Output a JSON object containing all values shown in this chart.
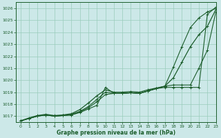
{
  "title": "Graphe pression niveau de la mer (hPa)",
  "bg_color": "#cce8e8",
  "grid_color": "#99ccbb",
  "line_color": "#1a5c2a",
  "xlim": [
    -0.5,
    23
  ],
  "ylim": [
    1016.5,
    1026.5
  ],
  "yticks": [
    1017,
    1018,
    1019,
    1020,
    1021,
    1022,
    1023,
    1024,
    1025,
    1026
  ],
  "xticks": [
    0,
    1,
    2,
    3,
    4,
    5,
    6,
    7,
    8,
    9,
    10,
    11,
    12,
    13,
    14,
    15,
    16,
    17,
    18,
    19,
    20,
    21,
    22,
    23
  ],
  "series": [
    [
      1016.6,
      1016.8,
      1017.0,
      1017.1,
      1017.0,
      1017.05,
      1017.1,
      1017.3,
      1017.6,
      1017.9,
      1019.4,
      1018.9,
      1018.9,
      1018.95,
      1018.9,
      1019.1,
      1019.3,
      1019.4,
      1019.4,
      1019.4,
      1019.4,
      1019.4,
      1025.5,
      1026.1
    ],
    [
      1016.6,
      1016.8,
      1017.0,
      1017.1,
      1017.0,
      1017.05,
      1017.15,
      1017.4,
      1017.8,
      1018.4,
      1019.0,
      1018.9,
      1018.9,
      1018.95,
      1018.9,
      1019.1,
      1019.3,
      1019.5,
      1021.1,
      1022.8,
      1024.4,
      1025.2,
      1025.7,
      1026.0
    ],
    [
      1016.6,
      1016.8,
      1017.0,
      1017.1,
      1017.0,
      1017.05,
      1017.1,
      1017.35,
      1017.7,
      1018.2,
      1018.8,
      1018.9,
      1018.9,
      1018.95,
      1018.9,
      1019.1,
      1019.3,
      1019.5,
      1019.6,
      1019.6,
      1019.6,
      1021.0,
      1022.5,
      1025.7
    ]
  ],
  "series4": [
    1016.6,
    1016.85,
    1017.05,
    1017.15,
    1017.05,
    1017.1,
    1017.2,
    1017.55,
    1018.1,
    1018.7,
    1019.2,
    1019.0,
    1019.0,
    1019.05,
    1019.0,
    1019.2,
    1019.35,
    1019.5,
    1020.2,
    1021.5,
    1022.8,
    1023.8,
    1024.5,
    1025.9
  ]
}
